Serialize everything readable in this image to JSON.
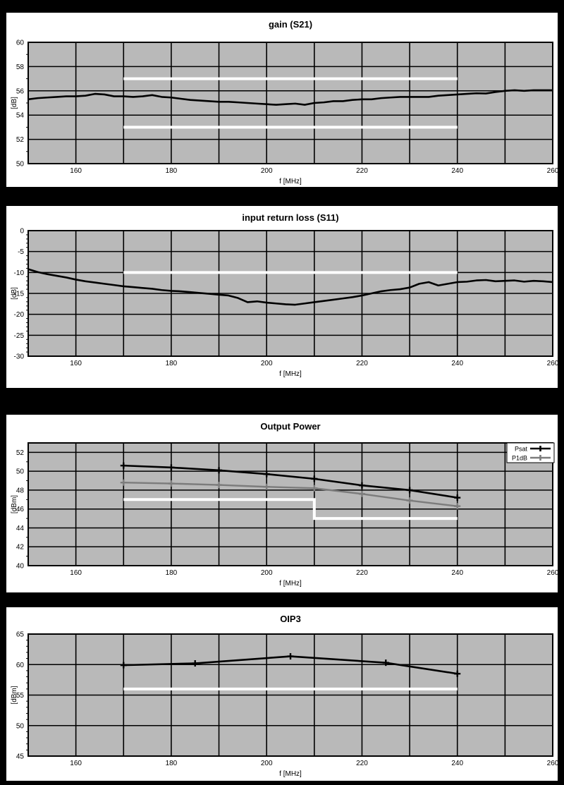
{
  "page": {
    "background": "#000000",
    "panel_background": "#ffffff"
  },
  "chart_data": [
    {
      "id": "gain-s21",
      "type": "line",
      "title": "gain (S21)",
      "xlabel": "f [MHz]",
      "ylabel": "[dB]",
      "xlim": [
        150,
        260
      ],
      "ylim": [
        50,
        60
      ],
      "xticks": [
        160,
        180,
        200,
        220,
        240,
        260
      ],
      "x_grid_step": 10,
      "yticks": [
        50,
        52,
        54,
        56,
        58,
        60
      ],
      "y_minor_step": 1,
      "grid": true,
      "plot_bg": "#b9b9b9",
      "grid_color": "#000000",
      "limit_color": "#ffffff",
      "legend": null,
      "limit_lines": [
        {
          "name": "upper-spec-57dB",
          "points": [
            [
              170,
              57
            ],
            [
              240,
              57
            ]
          ]
        },
        {
          "name": "lower-spec-53dB",
          "points": [
            [
              170,
              53
            ],
            [
              240,
              53
            ]
          ]
        }
      ],
      "series": [
        {
          "name": "S21",
          "color": "#000000",
          "width": 2.6,
          "markers": false,
          "points": [
            [
              150,
              55.3
            ],
            [
              152,
              55.4
            ],
            [
              154,
              55.45
            ],
            [
              156,
              55.5
            ],
            [
              158,
              55.55
            ],
            [
              160,
              55.55
            ],
            [
              162,
              55.6
            ],
            [
              164,
              55.75
            ],
            [
              166,
              55.7
            ],
            [
              168,
              55.55
            ],
            [
              170,
              55.55
            ],
            [
              172,
              55.5
            ],
            [
              174,
              55.55
            ],
            [
              176,
              55.65
            ],
            [
              178,
              55.5
            ],
            [
              180,
              55.45
            ],
            [
              182,
              55.35
            ],
            [
              184,
              55.25
            ],
            [
              186,
              55.2
            ],
            [
              188,
              55.15
            ],
            [
              190,
              55.1
            ],
            [
              192,
              55.1
            ],
            [
              194,
              55.05
            ],
            [
              196,
              55.0
            ],
            [
              198,
              54.95
            ],
            [
              200,
              54.9
            ],
            [
              202,
              54.85
            ],
            [
              204,
              54.9
            ],
            [
              206,
              54.95
            ],
            [
              208,
              54.85
            ],
            [
              210,
              55.0
            ],
            [
              212,
              55.05
            ],
            [
              214,
              55.15
            ],
            [
              216,
              55.15
            ],
            [
              218,
              55.25
            ],
            [
              220,
              55.3
            ],
            [
              222,
              55.3
            ],
            [
              224,
              55.4
            ],
            [
              226,
              55.45
            ],
            [
              228,
              55.5
            ],
            [
              230,
              55.5
            ],
            [
              232,
              55.5
            ],
            [
              234,
              55.5
            ],
            [
              236,
              55.6
            ],
            [
              238,
              55.65
            ],
            [
              240,
              55.7
            ],
            [
              242,
              55.75
            ],
            [
              244,
              55.8
            ],
            [
              246,
              55.78
            ],
            [
              248,
              55.9
            ],
            [
              250,
              56.0
            ],
            [
              252,
              56.05
            ],
            [
              254,
              56.0
            ],
            [
              256,
              56.05
            ],
            [
              258,
              56.05
            ],
            [
              260,
              56.05
            ]
          ]
        }
      ]
    },
    {
      "id": "input-return-loss-s11",
      "type": "line",
      "title": "input return loss (S11)",
      "xlabel": "f [MHz]",
      "ylabel": "[dB]",
      "xlim": [
        150,
        260
      ],
      "ylim": [
        -30,
        0
      ],
      "xticks": [
        160,
        180,
        200,
        220,
        240,
        260
      ],
      "x_grid_step": 10,
      "yticks": [
        -30,
        -25,
        -20,
        -15,
        -10,
        -5,
        0
      ],
      "y_minor_step": 1,
      "grid": true,
      "plot_bg": "#b9b9b9",
      "grid_color": "#000000",
      "limit_color": "#ffffff",
      "legend": null,
      "limit_lines": [
        {
          "name": "spec-minus-10dB",
          "points": [
            [
              170,
              -10
            ],
            [
              240,
              -10
            ]
          ]
        }
      ],
      "series": [
        {
          "name": "S11",
          "color": "#000000",
          "width": 2.6,
          "markers": false,
          "points": [
            [
              150,
              -9.2
            ],
            [
              152,
              -9.9
            ],
            [
              154,
              -10.4
            ],
            [
              156,
              -10.8
            ],
            [
              158,
              -11.2
            ],
            [
              160,
              -11.7
            ],
            [
              162,
              -12.1
            ],
            [
              164,
              -12.4
            ],
            [
              166,
              -12.7
            ],
            [
              168,
              -13.0
            ],
            [
              170,
              -13.3
            ],
            [
              172,
              -13.5
            ],
            [
              174,
              -13.7
            ],
            [
              176,
              -13.9
            ],
            [
              178,
              -14.2
            ],
            [
              180,
              -14.4
            ],
            [
              182,
              -14.5
            ],
            [
              184,
              -14.7
            ],
            [
              186,
              -14.9
            ],
            [
              188,
              -15.1
            ],
            [
              190,
              -15.3
            ],
            [
              192,
              -15.5
            ],
            [
              194,
              -16.1
            ],
            [
              196,
              -17.1
            ],
            [
              198,
              -16.9
            ],
            [
              200,
              -17.2
            ],
            [
              202,
              -17.4
            ],
            [
              204,
              -17.6
            ],
            [
              206,
              -17.7
            ],
            [
              208,
              -17.4
            ],
            [
              210,
              -17.1
            ],
            [
              212,
              -16.8
            ],
            [
              214,
              -16.5
            ],
            [
              216,
              -16.2
            ],
            [
              218,
              -15.9
            ],
            [
              220,
              -15.5
            ],
            [
              222,
              -15.0
            ],
            [
              224,
              -14.5
            ],
            [
              226,
              -14.2
            ],
            [
              228,
              -14.0
            ],
            [
              230,
              -13.6
            ],
            [
              232,
              -12.7
            ],
            [
              234,
              -12.3
            ],
            [
              236,
              -13.1
            ],
            [
              238,
              -12.7
            ],
            [
              240,
              -12.3
            ],
            [
              242,
              -12.2
            ],
            [
              244,
              -11.9
            ],
            [
              246,
              -11.8
            ],
            [
              248,
              -12.1
            ],
            [
              250,
              -12.0
            ],
            [
              252,
              -11.9
            ],
            [
              254,
              -12.2
            ],
            [
              256,
              -12.0
            ],
            [
              258,
              -12.1
            ],
            [
              260,
              -12.3
            ]
          ]
        }
      ]
    },
    {
      "id": "output-power",
      "type": "line",
      "title": "Output Power",
      "xlabel": "f [MHz]",
      "ylabel": "[dBm]",
      "xlim": [
        150,
        260
      ],
      "ylim": [
        40,
        53
      ],
      "xticks": [
        160,
        180,
        200,
        220,
        240,
        260
      ],
      "x_grid_step": 10,
      "yticks": [
        40,
        42,
        44,
        46,
        48,
        50,
        52
      ],
      "y_minor_step": 1,
      "grid": true,
      "plot_bg": "#b9b9b9",
      "grid_color": "#000000",
      "limit_color": "#ffffff",
      "legend": {
        "position": "top-right"
      },
      "limit_lines": [
        {
          "name": "spec-step-47-45dBm",
          "points": [
            [
              170,
              47
            ],
            [
              210,
              47
            ],
            [
              210,
              45
            ],
            [
              240,
              45
            ]
          ]
        }
      ],
      "series": [
        {
          "name": "Psat",
          "color": "#000000",
          "width": 2.6,
          "markers": true,
          "points": [
            [
              170,
              50.6
            ],
            [
              180,
              50.4
            ],
            [
              190,
              50.1
            ],
            [
              200,
              49.7
            ],
            [
              210,
              49.2
            ],
            [
              220,
              48.5
            ],
            [
              230,
              48.0
            ],
            [
              240,
              47.2
            ]
          ]
        },
        {
          "name": "P1dB",
          "color": "#7c7c7c",
          "width": 2.4,
          "markers": true,
          "points": [
            [
              170,
              48.8
            ],
            [
              180,
              48.7
            ],
            [
              190,
              48.55
            ],
            [
              200,
              48.35
            ],
            [
              210,
              48.2
            ],
            [
              220,
              47.6
            ],
            [
              230,
              46.9
            ],
            [
              240,
              46.3
            ]
          ]
        }
      ]
    },
    {
      "id": "oip3",
      "type": "line",
      "title": "OIP3",
      "xlabel": "f [MHz]",
      "ylabel": "[dBm]",
      "xlim": [
        150,
        260
      ],
      "ylim": [
        45,
        65
      ],
      "xticks": [
        160,
        180,
        200,
        220,
        240,
        260
      ],
      "x_grid_step": 10,
      "yticks": [
        45,
        50,
        55,
        60,
        65
      ],
      "y_minor_step": 1,
      "grid": true,
      "plot_bg": "#b9b9b9",
      "grid_color": "#000000",
      "limit_color": "#ffffff",
      "legend": null,
      "limit_lines": [
        {
          "name": "spec-56dBm",
          "points": [
            [
              170,
              56
            ],
            [
              240,
              56
            ]
          ]
        }
      ],
      "series": [
        {
          "name": "OIP3",
          "color": "#000000",
          "width": 2.6,
          "markers": true,
          "points": [
            [
              170,
              59.9
            ],
            [
              185,
              60.2
            ],
            [
              205,
              61.35
            ],
            [
              225,
              60.3
            ],
            [
              240,
              58.5
            ]
          ]
        }
      ]
    }
  ]
}
